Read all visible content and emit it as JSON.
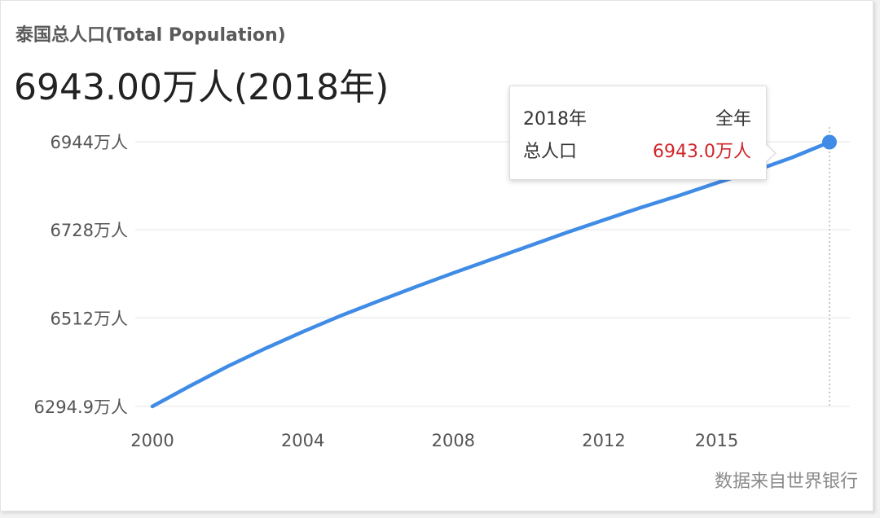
{
  "title": "泰国总人口(Total Population)",
  "headline": "6943.00万人(2018年)",
  "source": "数据来自世界银行",
  "tooltip": {
    "year": "2018年",
    "period": "全年",
    "label": "总人口",
    "value": "6943.0万人"
  },
  "colors": {
    "line": "#3f8be6",
    "grid": "#eeeeee",
    "tooltip_value": "#d0262b"
  },
  "chart_data": {
    "type": "line",
    "title": "泰国总人口(Total Population)",
    "xlabel": "",
    "ylabel": "",
    "ylim": [
      6294.9,
      6944
    ],
    "xlim": [
      2000,
      2018
    ],
    "y_ticks": [
      6294.9,
      6512,
      6728,
      6944
    ],
    "y_tick_labels": [
      "6294.9万人",
      "6512万人",
      "6728万人",
      "6944万人"
    ],
    "x_ticks": [
      2000,
      2004,
      2008,
      2012,
      2015
    ],
    "x_tick_labels": [
      "2000",
      "2004",
      "2008",
      "2012",
      "2015"
    ],
    "grid": true,
    "series": [
      {
        "name": "总人口",
        "x": [
          2000,
          2001,
          2002,
          2003,
          2004,
          2005,
          2006,
          2007,
          2008,
          2009,
          2010,
          2011,
          2012,
          2013,
          2014,
          2015,
          2016,
          2017,
          2018
        ],
        "values": [
          6294.9,
          6345,
          6393,
          6437,
          6478,
          6517,
          6553,
          6588,
          6622,
          6655,
          6688,
          6721,
          6752,
          6783,
          6812,
          6843,
          6872,
          6905,
          6943
        ]
      }
    ],
    "highlight": {
      "x": 2018,
      "y": 6943
    }
  }
}
